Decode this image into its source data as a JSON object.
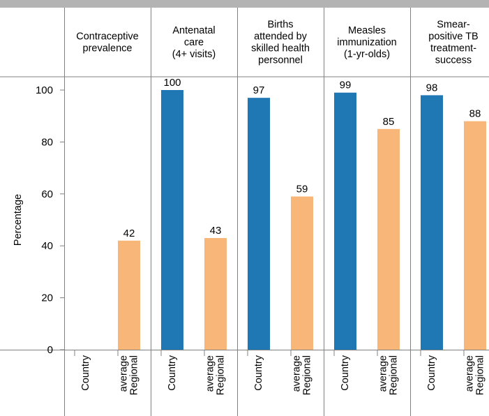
{
  "chart_data": {
    "type": "bar",
    "ylabel": "Percentage",
    "ylim": [
      0,
      100
    ],
    "yticks": [
      0,
      20,
      40,
      60,
      80,
      100
    ],
    "grid": false,
    "categories": [
      "Contraceptive\nprevalence",
      "Antenatal\ncare\n(4+ visits)",
      "Births\nattended by\nskilled health\npersonnel",
      "Measles\nimmunization\n(1-yr-olds)",
      "Smear-\npositive TB\ntreatment-\nsuccess"
    ],
    "series": [
      {
        "name": "Country",
        "color": "#1f77b4",
        "values": [
          null,
          100,
          97,
          99,
          98
        ]
      },
      {
        "name": "Regional\naverage",
        "color": "#f8b679",
        "values": [
          42,
          43,
          59,
          85,
          88
        ]
      }
    ]
  }
}
